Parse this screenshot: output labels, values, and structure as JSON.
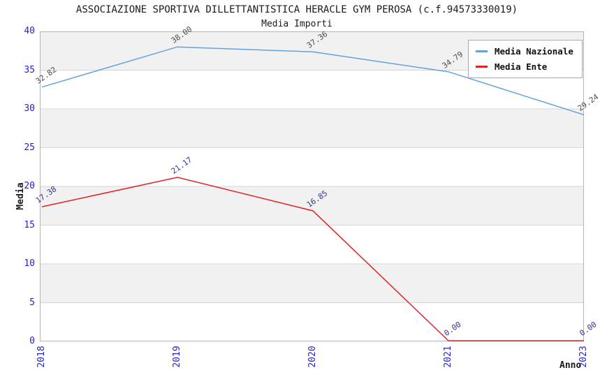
{
  "header": {
    "title": "ASSOCIAZIONE SPORTIVA DILLETTANTISTICA HERACLE GYM PEROSA (c.f.94573330019)",
    "subtitle": "Media Importi"
  },
  "chart_data": {
    "type": "line",
    "title": "Media Importi",
    "xlabel": "Anno",
    "ylabel": "Media",
    "categories": [
      "2018",
      "2019",
      "2020",
      "2021",
      "2023"
    ],
    "series": [
      {
        "name": "Media Nazionale",
        "color": "#64a1dc",
        "label_color": "#4d4d4d",
        "values": [
          32.82,
          38.0,
          37.36,
          34.79,
          29.24
        ]
      },
      {
        "name": "Media Ente",
        "color": "#e02222",
        "label_color": "#333399",
        "values": [
          17.38,
          21.17,
          16.85,
          0.0,
          0.0
        ]
      }
    ],
    "ylim": [
      0,
      40
    ],
    "ytick_step": 5,
    "yticks": [
      0,
      5,
      10,
      15,
      20,
      25,
      30,
      35,
      40
    ],
    "grid": true,
    "band_fill_intervals": "alternating from top, first band shaded",
    "legend_position": "top-right",
    "value_label_format": "2 decimals"
  },
  "colors": {
    "band": "#f1f1f1",
    "gridline": "#d6d6d6",
    "plot_border": "#b5b5b5",
    "tick_text": "#2323cc"
  }
}
